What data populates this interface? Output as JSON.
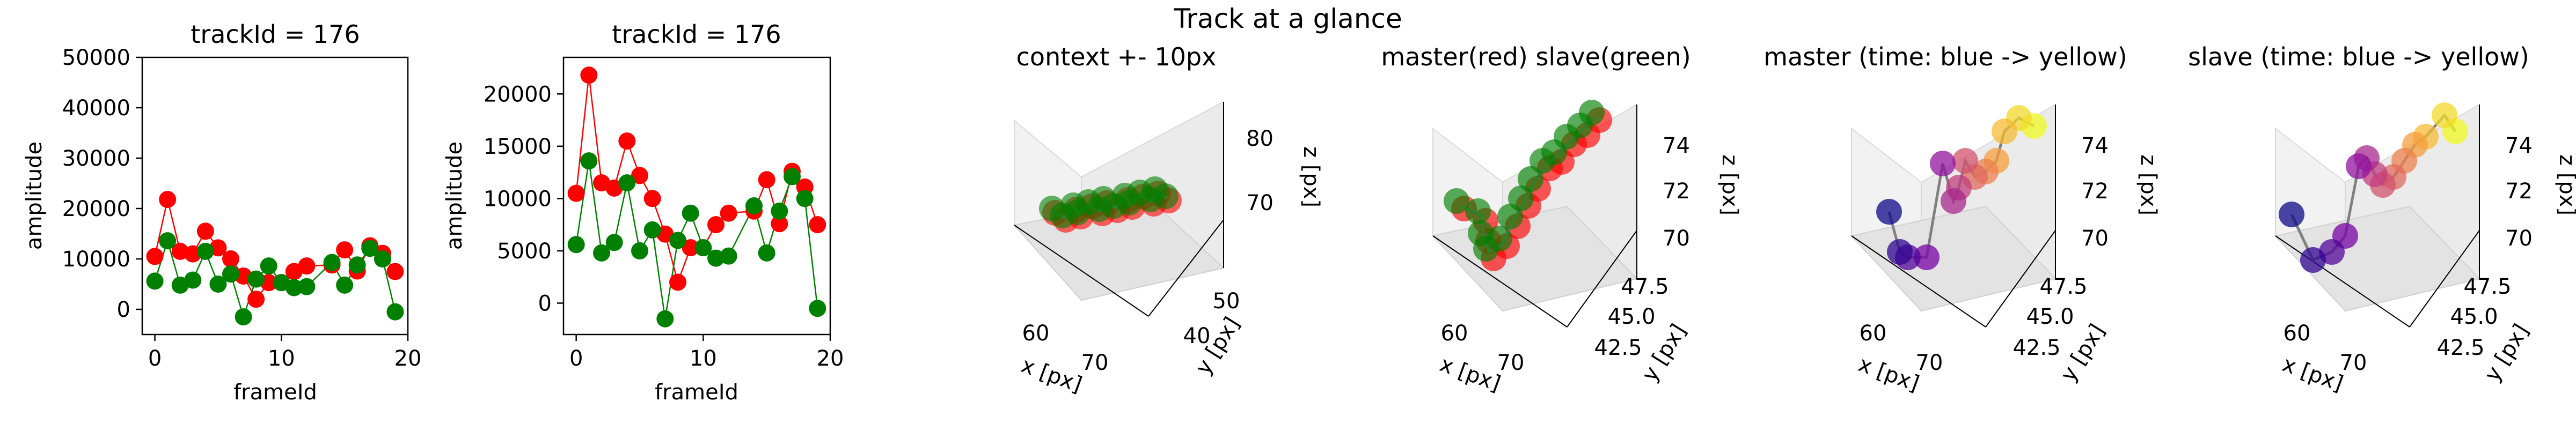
{
  "suptitle": "Track at a glance",
  "colors": {
    "master": "#ff0000",
    "slave": "#008000",
    "gray": "#808080"
  },
  "chart_data": [
    {
      "type": "line",
      "title": "trackId = 176",
      "xlabel": "frameId",
      "ylabel": "amplitude",
      "xlim": [
        -1,
        20
      ],
      "ylim": [
        -5000,
        50000
      ],
      "xticks": [
        0,
        10,
        20
      ],
      "yticks": [
        0,
        10000,
        20000,
        30000,
        40000,
        50000
      ],
      "x": [
        0,
        1,
        2,
        3,
        4,
        5,
        6,
        7,
        8,
        9,
        10,
        11,
        12,
        14,
        15,
        16,
        17,
        18,
        19
      ],
      "series": [
        {
          "color": "#ff0000",
          "values": [
            10500,
            21800,
            11500,
            11000,
            15500,
            12200,
            10000,
            6600,
            2000,
            5300,
            5300,
            7500,
            8600,
            8800,
            11800,
            7600,
            12600,
            11100,
            7500
          ]
        },
        {
          "color": "#008000",
          "values": [
            5600,
            13600,
            4800,
            5800,
            11500,
            5000,
            7000,
            -1500,
            6000,
            8600,
            5300,
            4300,
            4500,
            9300,
            4800,
            8800,
            12100,
            10000,
            -500
          ]
        }
      ]
    },
    {
      "type": "line",
      "title": "trackId = 176",
      "xlabel": "frameId",
      "ylabel": "amplitude",
      "xlim": [
        -1,
        20
      ],
      "ylim": [
        -3000,
        23500
      ],
      "xticks": [
        0,
        10,
        20
      ],
      "yticks": [
        0,
        5000,
        10000,
        15000,
        20000
      ],
      "x": [
        0,
        1,
        2,
        3,
        4,
        5,
        6,
        7,
        8,
        9,
        10,
        11,
        12,
        14,
        15,
        16,
        17,
        18,
        19
      ],
      "series": [
        {
          "color": "#ff0000",
          "values": [
            10500,
            21800,
            11500,
            11000,
            15500,
            12200,
            10000,
            6600,
            2000,
            5300,
            5300,
            7500,
            8600,
            8800,
            11800,
            7600,
            12600,
            11100,
            7500
          ]
        },
        {
          "color": "#008000",
          "values": [
            5600,
            13600,
            4800,
            5800,
            11500,
            5000,
            7000,
            -1500,
            6000,
            8600,
            5300,
            4300,
            4500,
            9300,
            4800,
            8800,
            12100,
            10000,
            -500
          ]
        }
      ]
    },
    {
      "type": "scatter",
      "title": "context +- 10px",
      "xlabel": "x [px]",
      "ylabel": "y [px]",
      "zlabel": "z [px]",
      "xticks": [
        "60",
        "70"
      ],
      "yticks": [
        "40",
        "50"
      ],
      "zticks": [
        "70",
        "80"
      ]
    },
    {
      "type": "scatter",
      "title": "master(red) slave(green)",
      "xlabel": "x [px]",
      "ylabel": "y [px]",
      "zlabel": "z [px]",
      "xticks": [
        "60",
        "70"
      ],
      "yticks": [
        "42.5",
        "45.0",
        "47.5"
      ],
      "zticks": [
        "70",
        "72",
        "74"
      ]
    },
    {
      "type": "scatter",
      "title": "master (time: blue -> yellow)",
      "xlabel": "x [px]",
      "ylabel": "y [px]",
      "zlabel": "z [px]",
      "xticks": [
        "60",
        "70"
      ],
      "yticks": [
        "42.5",
        "45.0",
        "47.5"
      ],
      "zticks": [
        "70",
        "72",
        "74"
      ]
    },
    {
      "type": "scatter",
      "title": "slave (time: blue -> yellow)",
      "xlabel": "x [px]",
      "ylabel": "y [px]",
      "zlabel": "z [px]",
      "xticks": [
        "60",
        "70"
      ],
      "yticks": [
        "42.5",
        "45.0",
        "47.5"
      ],
      "zticks": [
        "70",
        "72",
        "74"
      ]
    }
  ]
}
